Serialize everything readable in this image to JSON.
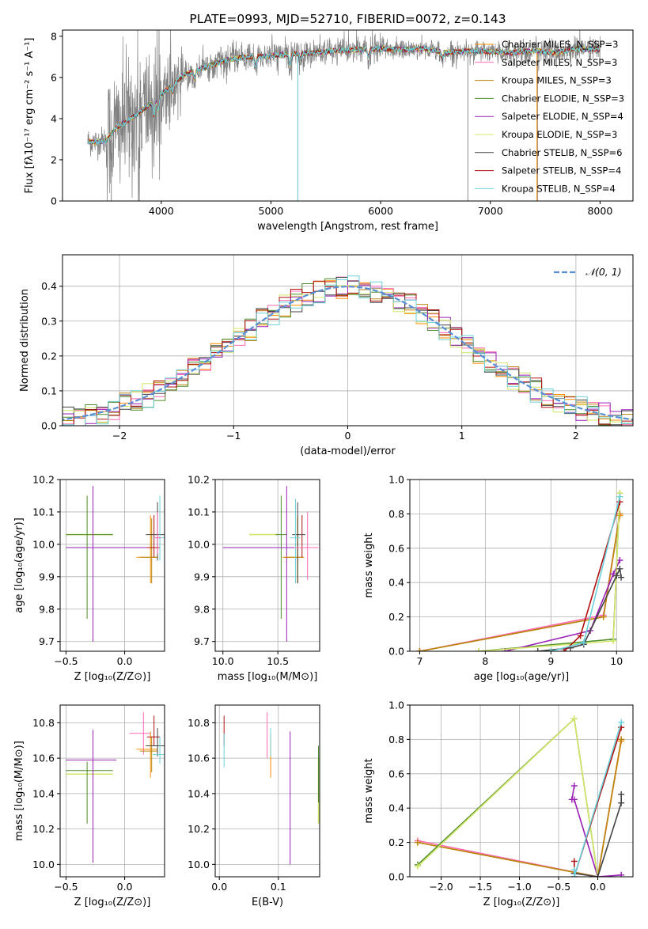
{
  "colors": {
    "chabrier_miles": "#ff8c00",
    "salpeter_miles": "#ff69b4",
    "kroupa_miles": "#b8860b",
    "chabrier_elodie": "#4c8c2b",
    "salpeter_elodie": "#9a1fb5",
    "kroupa_elodie": "#d4e66a",
    "chabrier_stelib": "#444444",
    "salpeter_stelib": "#b01010",
    "kroupa_stelib": "#6ad1dc",
    "data": "#808080",
    "gaussian": "#5a8fd6",
    "grid": "#b0b0b0"
  },
  "chart_data": [
    {
      "id": "spectrum",
      "type": "line",
      "title": "PLATE=0993, MJD=52710, FIBERID=0072, z=0.143",
      "xlabel": "wavelength [Angstrom, rest frame]",
      "ylabel": "Flux [fλ10⁻¹⁷ erg cm⁻² s⁻¹ A⁻¹]",
      "xlim": [
        3100,
        8300
      ],
      "ylim": [
        0,
        8.3
      ],
      "xticks": [
        4000,
        5000,
        6000,
        7000,
        8000
      ],
      "yticks": [
        0,
        2,
        4,
        6,
        8
      ],
      "grid": false,
      "legend_position": "upper right",
      "legend": [
        "Chabrier MILES, N_SSP=3",
        "Salpeter MILES, N_SSP=3",
        "Kroupa MILES, N_SSP=3",
        "Chabrier ELODIE, N_SSP=3",
        "Salpeter ELODIE, N_SSP=4",
        "Kroupa ELODIE, N_SSP=3",
        "Chabrier STELIB, N_SSP=6",
        "Salpeter STELIB, N_SSP=4",
        "Kroupa STELIB, N_SSP=4"
      ],
      "continuum": {
        "x": [
          3330,
          3400,
          3500,
          3600,
          3700,
          3800,
          3900,
          4000,
          4100,
          4200,
          4400,
          4600,
          4800,
          5000,
          5200,
          5400,
          5600,
          5800,
          6000,
          6200,
          6400,
          6600,
          6800,
          7000,
          7200,
          7400,
          7600,
          7800,
          8000
        ],
        "y": [
          2.9,
          2.85,
          2.95,
          3.6,
          3.9,
          4.3,
          4.7,
          5.2,
          5.6,
          6.1,
          6.5,
          6.85,
          7.0,
          7.05,
          7.15,
          7.2,
          7.3,
          7.35,
          7.4,
          7.35,
          7.4,
          7.2,
          7.3,
          7.25,
          7.2,
          7.3,
          7.2,
          7.4,
          7.35
        ]
      }
    },
    {
      "id": "residuals",
      "type": "histogram",
      "xlabel": "(data-model)/error",
      "ylabel": "Normed distribution",
      "xlim": [
        -2.5,
        2.5
      ],
      "ylim": [
        0,
        0.49
      ],
      "xticks": [
        -2,
        -1,
        0,
        1,
        2
      ],
      "yticks": [
        0.0,
        0.1,
        0.2,
        0.3,
        0.4
      ],
      "grid": true,
      "legend": [
        "𝒩(0, 1)"
      ],
      "legend_position": "upper right",
      "bin_width": 0.1
    },
    {
      "id": "age_vs_Z",
      "type": "errorbar",
      "xlabel": "Z [log₁₀(Z/Z⊙)]",
      "ylabel": "age [log₁₀(age/yr)]",
      "xlim": [
        -0.55,
        0.34
      ],
      "ylim": [
        9.67,
        10.2
      ],
      "xticks": [
        -0.5,
        0.0
      ],
      "yticks": [
        9.7,
        9.8,
        9.9,
        10.0,
        10.1,
        10.2
      ],
      "grid": true,
      "points": [
        {
          "series": "kroupa_elodie",
          "x": -0.3,
          "xerr": [
            0.2,
            0.2
          ],
          "y": 10.03,
          "yerr": [
            0.0,
            0.0
          ]
        },
        {
          "series": "chabrier_elodie",
          "x": -0.32,
          "xerr": [
            0.18,
            0.22
          ],
          "y": 10.03,
          "yerr": [
            0.26,
            0.12
          ]
        },
        {
          "series": "salpeter_elodie",
          "x": -0.27,
          "xerr": [
            0.23,
            0.5
          ],
          "y": 9.99,
          "yerr": [
            0.29,
            0.19
          ]
        },
        {
          "series": "chabrier_miles",
          "x": 0.22,
          "xerr": [
            0.12,
            0.06
          ],
          "y": 9.96,
          "yerr": [
            0.08,
            0.13
          ]
        },
        {
          "series": "kroupa_miles",
          "x": 0.23,
          "xerr": [
            0.1,
            0.05
          ],
          "y": 9.96,
          "yerr": [
            0.08,
            0.12
          ]
        },
        {
          "series": "salpeter_stelib",
          "x": 0.25,
          "xerr": [
            0.06,
            0.05
          ],
          "y": 9.99,
          "yerr": [
            0.03,
            0.1
          ]
        },
        {
          "series": "chabrier_stelib",
          "x": 0.28,
          "xerr": [
            0.1,
            0.06
          ],
          "y": 10.03,
          "yerr": [
            0.08,
            0.1
          ]
        },
        {
          "series": "kroupa_stelib",
          "x": 0.3,
          "xerr": [
            0.06,
            0.04
          ],
          "y": 10.02,
          "yerr": [
            0.07,
            0.13
          ]
        },
        {
          "series": "salpeter_miles",
          "x": 0.28,
          "xerr": [
            0.03,
            0.03
          ],
          "y": 10.02,
          "yerr": [
            0.05,
            0.08
          ]
        }
      ]
    },
    {
      "id": "age_vs_mass",
      "type": "errorbar",
      "xlabel": "mass [log₁₀(M/M⊙)]",
      "ylabel": "",
      "xlim": [
        9.93,
        10.88
      ],
      "ylim": [
        9.67,
        10.2
      ],
      "xticks": [
        10.0,
        10.5
      ],
      "yticks": [
        9.7,
        9.8,
        9.9,
        10.0,
        10.1,
        10.2
      ],
      "grid": true,
      "points": [
        {
          "series": "kroupa_elodie",
          "x": 10.5,
          "xerr": [
            0.26,
            0.0
          ],
          "y": 10.03,
          "yerr": [
            0.0,
            0.0
          ]
        },
        {
          "series": "chabrier_elodie",
          "x": 10.53,
          "xerr": [
            0.05,
            0.05
          ],
          "y": 10.03,
          "yerr": [
            0.26,
            0.12
          ]
        },
        {
          "series": "salpeter_elodie",
          "x": 10.58,
          "xerr": [
            0.58,
            0.25
          ],
          "y": 9.99,
          "yerr": [
            0.29,
            0.19
          ]
        },
        {
          "series": "chabrier_miles",
          "x": 10.68,
          "xerr": [
            0.14,
            0.06
          ],
          "y": 9.96,
          "yerr": [
            0.08,
            0.13
          ]
        },
        {
          "series": "kroupa_miles",
          "x": 10.68,
          "xerr": [
            0.12,
            0.05
          ],
          "y": 9.96,
          "yerr": [
            0.08,
            0.12
          ]
        },
        {
          "series": "salpeter_stelib",
          "x": 10.72,
          "xerr": [
            0.05,
            0.07
          ],
          "y": 9.99,
          "yerr": [
            0.03,
            0.1
          ]
        },
        {
          "series": "chabrier_stelib",
          "x": 10.68,
          "xerr": [
            0.05,
            0.07
          ],
          "y": 10.03,
          "yerr": [
            0.15,
            0.1
          ]
        },
        {
          "series": "kroupa_stelib",
          "x": 10.66,
          "xerr": [
            0.05,
            0.04
          ],
          "y": 10.02,
          "yerr": [
            0.14,
            0.12
          ]
        },
        {
          "series": "salpeter_miles",
          "x": 10.77,
          "xerr": [
            0.12,
            0.1
          ],
          "y": 9.99,
          "yerr": [
            0.1,
            0.11
          ]
        }
      ]
    },
    {
      "id": "weight_vs_age",
      "type": "line",
      "xlabel": "age [log₁₀(age/yr)]",
      "ylabel": "mass weight",
      "xlim": [
        6.85,
        10.25
      ],
      "ylim": [
        0,
        1.0
      ],
      "xticks": [
        7,
        8,
        9,
        10
      ],
      "yticks": [
        0.0,
        0.2,
        0.4,
        0.6,
        0.8,
        1.0
      ],
      "grid": true,
      "series": [
        {
          "key": "chabrier_miles",
          "x": [
            7.0,
            9.8,
            10.05
          ],
          "y": [
            0.0,
            0.2,
            0.79
          ]
        },
        {
          "key": "salpeter_miles",
          "x": [
            7.0,
            9.8,
            10.05
          ],
          "y": [
            0.0,
            0.21,
            0.8
          ]
        },
        {
          "key": "kroupa_miles",
          "x": [
            7.0,
            9.8,
            10.05
          ],
          "y": [
            0.0,
            0.2,
            0.8
          ]
        },
        {
          "key": "chabrier_elodie",
          "x": [
            7.9,
            9.95,
            10.05
          ],
          "y": [
            0.0,
            0.07,
            0.92
          ]
        },
        {
          "key": "salpeter_elodie",
          "x": [
            8.3,
            9.6,
            9.95,
            10.05
          ],
          "y": [
            0.0,
            0.12,
            0.45,
            0.53
          ]
        },
        {
          "key": "kroupa_elodie",
          "x": [
            7.9,
            9.95,
            10.05
          ],
          "y": [
            0.0,
            0.06,
            0.92
          ]
        },
        {
          "key": "chabrier_stelib",
          "x": [
            8.8,
            9.3,
            9.5,
            10.0,
            10.05,
            10.07
          ],
          "y": [
            0.0,
            0.02,
            0.04,
            0.44,
            0.48,
            0.43
          ]
        },
        {
          "key": "salpeter_stelib",
          "x": [
            9.2,
            9.45,
            10.05
          ],
          "y": [
            0.0,
            0.09,
            0.87
          ]
        },
        {
          "key": "kroupa_stelib",
          "x": [
            9.0,
            9.5,
            10.05
          ],
          "y": [
            0.0,
            0.05,
            0.9
          ]
        }
      ]
    },
    {
      "id": "mass_vs_Z",
      "type": "errorbar",
      "xlabel": "Z [log₁₀(Z/Z⊙)]",
      "ylabel": "mass [log₁₀(M/M⊙)]",
      "xlim": [
        -0.55,
        0.34
      ],
      "ylim": [
        9.93,
        10.9
      ],
      "xticks": [
        -0.5,
        0.0
      ],
      "yticks": [
        10.0,
        10.2,
        10.4,
        10.6,
        10.8
      ],
      "grid": true,
      "points": [
        {
          "series": "kroupa_elodie",
          "x": -0.3,
          "xerr": [
            0.2,
            0.2
          ],
          "y": 10.51,
          "yerr": [
            0.0,
            0.0
          ]
        },
        {
          "series": "chabrier_elodie",
          "x": -0.32,
          "xerr": [
            0.18,
            0.22
          ],
          "y": 10.53,
          "yerr": [
            0.3,
            0.05
          ]
        },
        {
          "series": "salpeter_elodie",
          "x": -0.27,
          "xerr": [
            0.23,
            0.2
          ],
          "y": 10.59,
          "yerr": [
            0.58,
            0.17
          ]
        },
        {
          "series": "salpeter_miles",
          "x": 0.16,
          "xerr": [
            0.12,
            0.06
          ],
          "y": 10.74,
          "yerr": [
            0.12,
            0.12
          ]
        },
        {
          "series": "chabrier_miles",
          "x": 0.22,
          "xerr": [
            0.12,
            0.06
          ],
          "y": 10.65,
          "yerr": [
            0.16,
            0.1
          ]
        },
        {
          "series": "kroupa_miles",
          "x": 0.23,
          "xerr": [
            0.1,
            0.05
          ],
          "y": 10.64,
          "yerr": [
            0.12,
            0.08
          ]
        },
        {
          "series": "salpeter_stelib",
          "x": 0.25,
          "xerr": [
            0.06,
            0.05
          ],
          "y": 10.72,
          "yerr": [
            0.05,
            0.12
          ]
        },
        {
          "series": "chabrier_stelib",
          "x": 0.28,
          "xerr": [
            0.1,
            0.06
          ],
          "y": 10.67,
          "yerr": [
            0.06,
            0.1
          ]
        },
        {
          "series": "kroupa_stelib",
          "x": 0.3,
          "xerr": [
            0.06,
            0.04
          ],
          "y": 10.62,
          "yerr": [
            0.05,
            0.1
          ]
        }
      ]
    },
    {
      "id": "mass_vs_ebv",
      "type": "errorbar",
      "xlabel": "E(B-V)",
      "ylabel": "",
      "xlim": [
        -0.007,
        0.17
      ],
      "ylim": [
        9.93,
        10.9
      ],
      "xticks": [
        0.0,
        0.1
      ],
      "yticks": [
        10.0,
        10.2,
        10.4,
        10.6,
        10.8
      ],
      "grid": true,
      "points": [
        {
          "series": "salpeter_stelib",
          "x": 0.008,
          "xerr": [
            0.0,
            0.0
          ],
          "y": 10.72,
          "yerr": [
            0.05,
            0.12
          ]
        },
        {
          "series": "kroupa_stelib",
          "x": 0.008,
          "xerr": [
            0.0,
            0.0
          ],
          "y": 10.64,
          "yerr": [
            0.09,
            0.1
          ]
        },
        {
          "series": "salpeter_miles",
          "x": 0.081,
          "xerr": [
            0.0,
            0.0
          ],
          "y": 10.74,
          "yerr": [
            0.14,
            0.12
          ]
        },
        {
          "series": "chabrier_miles",
          "x": 0.087,
          "xerr": [
            0.0,
            0.0
          ],
          "y": 10.64,
          "yerr": [
            0.15,
            0.09
          ]
        },
        {
          "series": "kroupa_stelib",
          "x": 0.087,
          "xerr": [
            0.0,
            0.0
          ],
          "y": 10.65,
          "yerr": [
            0.04,
            0.12
          ]
        },
        {
          "series": "salpeter_elodie",
          "x": 0.12,
          "xerr": [
            0.0,
            0.0
          ],
          "y": 10.58,
          "yerr": [
            0.58,
            0.17
          ]
        },
        {
          "series": "kroupa_elodie",
          "x": 0.168,
          "xerr": [
            0.0,
            0.0
          ],
          "y": 10.42,
          "yerr": [
            0.19,
            0.18
          ]
        },
        {
          "series": "chabrier_elodie",
          "x": 0.168,
          "xerr": [
            0.0,
            0.0
          ],
          "y": 10.5,
          "yerr": [
            0.15,
            0.17
          ]
        }
      ]
    },
    {
      "id": "weight_vs_Z",
      "type": "line",
      "xlabel": "Z [log₁₀(Z/Z⊙)]",
      "ylabel": "mass weight",
      "xlim": [
        -2.4,
        0.45
      ],
      "ylim": [
        0,
        1.0
      ],
      "xticks": [
        -2.0,
        -1.5,
        -1.0,
        -0.5,
        0.0
      ],
      "yticks": [
        0.0,
        0.2,
        0.4,
        0.6,
        0.8,
        1.0
      ],
      "grid": true,
      "series": [
        {
          "key": "chabrier_miles",
          "x": [
            -2.3,
            0.0,
            0.3
          ],
          "y": [
            0.2,
            0.0,
            0.79
          ]
        },
        {
          "key": "salpeter_miles",
          "x": [
            -2.3,
            0.0,
            0.3
          ],
          "y": [
            0.21,
            0.0,
            0.8
          ]
        },
        {
          "key": "kroupa_miles",
          "x": [
            -2.3,
            0.0,
            0.3
          ],
          "y": [
            0.2,
            0.0,
            0.8
          ]
        },
        {
          "key": "chabrier_elodie",
          "x": [
            -2.3,
            -0.3,
            0.0
          ],
          "y": [
            0.07,
            0.92,
            0.0
          ]
        },
        {
          "key": "salpeter_elodie",
          "x": [
            -0.3,
            -0.33,
            -0.3,
            0.0,
            0.3
          ],
          "y": [
            0.53,
            0.45,
            0.45,
            0.0,
            0.01
          ]
        },
        {
          "key": "kroupa_elodie",
          "x": [
            -2.3,
            -0.3,
            0.0
          ],
          "y": [
            0.06,
            0.92,
            0.0
          ]
        },
        {
          "key": "chabrier_stelib",
          "x": [
            -0.3,
            0.0,
            0.3,
            0.3
          ],
          "y": [
            0.02,
            0.0,
            0.43,
            0.48
          ]
        },
        {
          "key": "salpeter_stelib",
          "x": [
            -0.3,
            -0.3,
            0.3
          ],
          "y": [
            0.09,
            0.0,
            0.87
          ]
        },
        {
          "key": "kroupa_stelib",
          "x": [
            -0.3,
            -0.3,
            0.3
          ],
          "y": [
            0.04,
            0.0,
            0.9
          ]
        }
      ]
    }
  ]
}
